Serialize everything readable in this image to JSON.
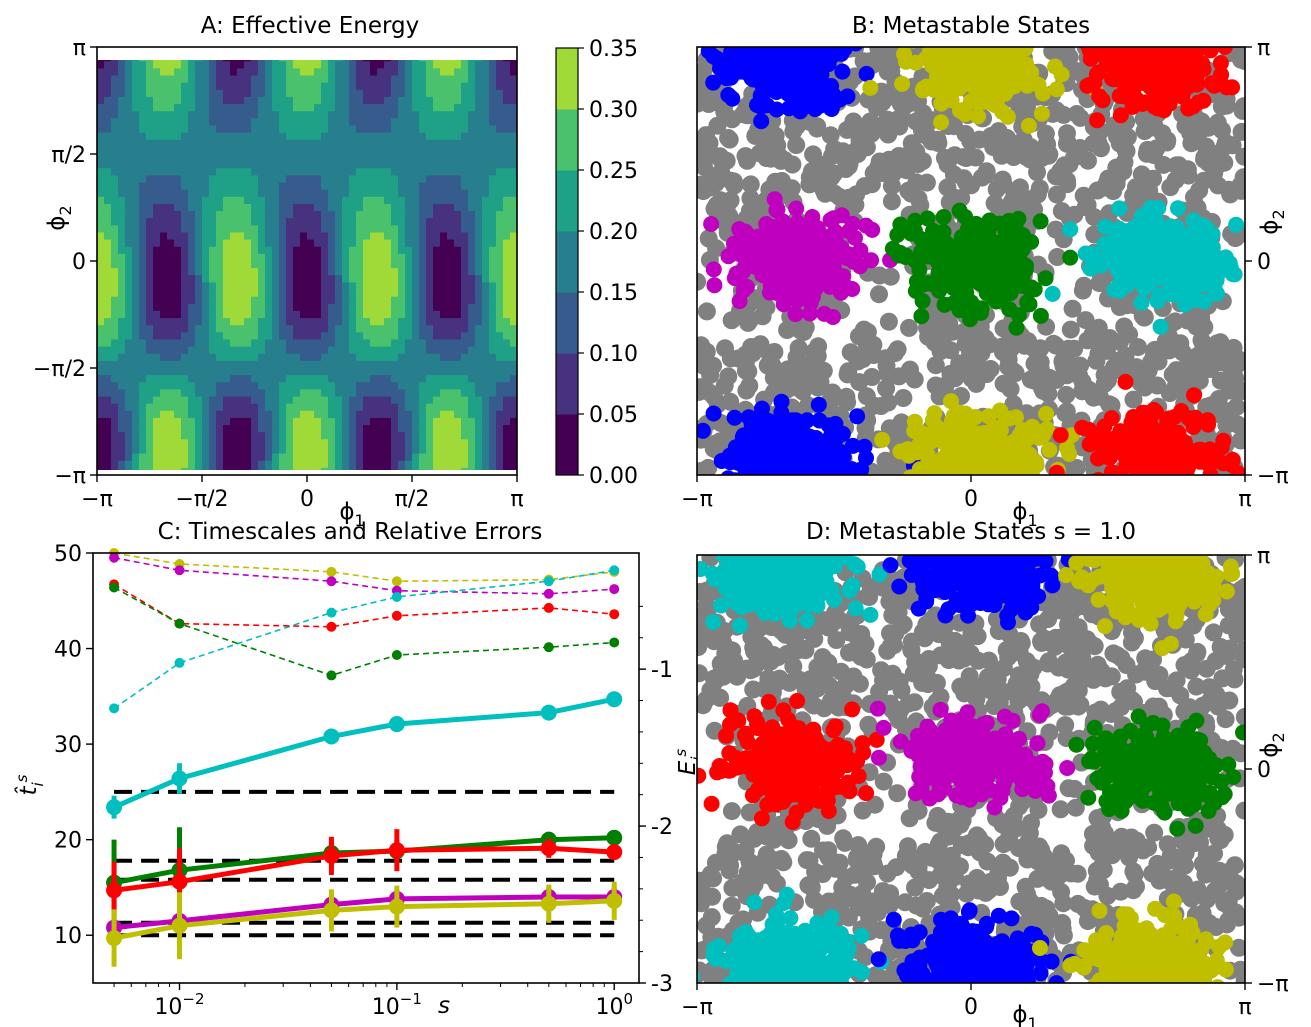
{
  "panels": {
    "a": {
      "title": "A: Effective Energy",
      "xlabel_base": "ϕ",
      "xlabel_sub": "1",
      "ylabel_base": "ϕ",
      "ylabel_sub": "2",
      "ticks": [
        "−π",
        "−π/2",
        "0",
        "π/2",
        "π"
      ],
      "colorbar_ticks": [
        "0.00",
        "0.05",
        "0.10",
        "0.15",
        "0.20",
        "0.25",
        "0.30",
        "0.35"
      ]
    },
    "b": {
      "title": "B: Metastable States",
      "xlabel_base": "ϕ",
      "xlabel_sub": "1",
      "ylabel_base": "ϕ",
      "ylabel_sub": "2",
      "xticks": [
        "−π",
        "0",
        "π"
      ],
      "yticks": [
        "π",
        "0",
        "−π"
      ]
    },
    "c": {
      "title": "C: Timescales and Relative Errors",
      "xlabel": "s",
      "ylabel_left_base": "t̂",
      "ylabel_left_sub": "i",
      "ylabel_left_sup": "s",
      "ylabel_right_base": "E",
      "ylabel_right_sub": "i",
      "ylabel_right_sup": "s",
      "yticks_left": [
        "10",
        "20",
        "30",
        "40",
        "50"
      ],
      "yticks_right": [
        "-1",
        "-2",
        "-3"
      ],
      "xticks": [
        {
          "base": "10",
          "exp": "−2"
        },
        {
          "base": "10",
          "exp": "−1"
        },
        {
          "base": "10",
          "exp": "0"
        }
      ]
    },
    "d": {
      "title": "D: Metastable States s = 1.0",
      "xlabel_base": "ϕ",
      "xlabel_sub": "1",
      "ylabel_base": "ϕ",
      "ylabel_sub": "2",
      "xticks": [
        "−π",
        "0",
        "π"
      ],
      "yticks": [
        "π",
        "0",
        "−π"
      ]
    }
  },
  "chart_data": [
    {
      "type": "heatmap",
      "panel": "A",
      "title": "A: Effective Energy",
      "xlim": [
        -3.1416,
        3.1416
      ],
      "ylim": [
        -3.1416,
        3.1416
      ],
      "colorbar_range": [
        0.0,
        0.35
      ],
      "levels": [
        0.0,
        0.05,
        0.1,
        0.15,
        0.2,
        0.25,
        0.3,
        0.35
      ],
      "colormap": [
        "#440154",
        "#46327e",
        "#365c8d",
        "#277f8e",
        "#1fa187",
        "#4ac16d",
        "#a0da39",
        "#fde725"
      ],
      "minima_at": [
        [
          -2.09,
          0
        ],
        [
          0,
          0
        ],
        [
          2.09,
          0
        ],
        [
          -2.09,
          3.14
        ],
        [
          0,
          3.14
        ],
        [
          2.09,
          3.14
        ],
        [
          -2.09,
          -3.14
        ],
        [
          0,
          -3.14
        ],
        [
          2.09,
          -3.14
        ]
      ],
      "maxima_at": [
        [
          -1.05,
          1.57
        ],
        [
          1.05,
          1.57
        ],
        [
          3.14,
          1.57
        ],
        [
          -3.14,
          1.57
        ],
        [
          -1.05,
          -1.57
        ],
        [
          1.05,
          -1.57
        ],
        [
          3.14,
          -1.57
        ],
        [
          -3.14,
          -1.57
        ]
      ]
    },
    {
      "type": "scatter",
      "panel": "B",
      "title": "B: Metastable States",
      "xlim": [
        -3.1416,
        3.1416
      ],
      "ylim": [
        -3.1416,
        3.1416
      ],
      "background_color": "#808080",
      "clusters": [
        {
          "color": "#0000ff",
          "centers": [
            [
              -2.1,
              2.85
            ],
            [
              -2.1,
              -2.85
            ]
          ]
        },
        {
          "color": "#bfbf00",
          "centers": [
            [
              0.05,
              2.85
            ],
            [
              0.05,
              -2.85
            ]
          ]
        },
        {
          "color": "#ff0000",
          "centers": [
            [
              2.1,
              2.9
            ],
            [
              2.1,
              -2.85
            ]
          ]
        },
        {
          "color": "#bf00bf",
          "centers": [
            [
              -2.0,
              0.05
            ]
          ]
        },
        {
          "color": "#008000",
          "centers": [
            [
              0.05,
              0.0
            ]
          ]
        },
        {
          "color": "#00bfbf",
          "centers": [
            [
              2.2,
              0.05
            ]
          ]
        }
      ]
    },
    {
      "type": "line",
      "panel": "C",
      "title": "C: Timescales and Relative Errors",
      "xscale": "log",
      "xlim": [
        0.004,
        1.3
      ],
      "ylim": [
        5,
        50
      ],
      "y2lim": [
        -3,
        -0.26
      ],
      "x": [
        0.005,
        0.01,
        0.05,
        0.1,
        0.5,
        1.0
      ],
      "reference_levels": [
        25.0,
        17.8,
        15.8,
        11.3,
        10.0
      ],
      "series": [
        {
          "color": "#00bfbf",
          "axis": "left",
          "values": [
            23.4,
            26.4,
            30.8,
            32.1,
            33.3,
            34.7
          ],
          "errors": [
            1.2,
            1.6,
            0.6,
            0.6,
            0.6,
            0.6
          ]
        },
        {
          "color": "#008000",
          "axis": "left",
          "values": [
            15.5,
            16.8,
            18.6,
            18.8,
            20.0,
            20.2
          ],
          "errors": [
            4.5,
            4.5,
            1.2,
            1.2,
            0.8,
            0.8
          ]
        },
        {
          "color": "#ff0000",
          "axis": "left",
          "values": [
            14.7,
            15.6,
            18.3,
            18.9,
            19.1,
            18.7
          ],
          "errors": [
            3.0,
            3.5,
            2.0,
            2.2,
            1.0,
            0.6
          ]
        },
        {
          "color": "#bf00bf",
          "axis": "left",
          "values": [
            10.8,
            11.5,
            13.2,
            13.8,
            14.0,
            14.0
          ],
          "errors": [
            1.0,
            1.2,
            1.0,
            1.0,
            1.0,
            1.0
          ]
        },
        {
          "color": "#bfbf00",
          "axis": "left",
          "values": [
            9.7,
            11.0,
            12.6,
            13.0,
            13.3,
            13.6
          ],
          "errors": [
            3.0,
            3.5,
            2.2,
            2.2,
            2.0,
            2.0
          ]
        },
        {
          "color": "#bfbf00",
          "axis": "right",
          "values": [
            -0.26,
            -0.33,
            -0.38,
            -0.44,
            -0.43,
            -0.38
          ]
        },
        {
          "color": "#bf00bf",
          "axis": "right",
          "values": [
            -0.29,
            -0.37,
            -0.44,
            -0.5,
            -0.52,
            -0.49
          ]
        },
        {
          "color": "#00bfbf",
          "axis": "right",
          "values": [
            -1.25,
            -0.96,
            -0.64,
            -0.54,
            -0.44,
            -0.37
          ]
        },
        {
          "color": "#ff0000",
          "axis": "right",
          "values": [
            -0.46,
            -0.71,
            -0.73,
            -0.66,
            -0.61,
            -0.65
          ]
        },
        {
          "color": "#008000",
          "axis": "right",
          "values": [
            -0.48,
            -0.71,
            -1.04,
            -0.91,
            -0.86,
            -0.83
          ]
        }
      ]
    },
    {
      "type": "scatter",
      "panel": "D",
      "title": "D: Metastable States s = 1.0",
      "xlim": [
        -3.1416,
        3.1416
      ],
      "ylim": [
        -3.1416,
        3.1416
      ],
      "background_color": "#808080",
      "clusters": [
        {
          "color": "#00bfbf",
          "centers": [
            [
              -2.1,
              2.85
            ],
            [
              -2.1,
              -2.85
            ]
          ]
        },
        {
          "color": "#0000ff",
          "centers": [
            [
              0.05,
              2.95
            ],
            [
              0.05,
              -2.85
            ]
          ]
        },
        {
          "color": "#bfbf00",
          "centers": [
            [
              2.1,
              2.85
            ],
            [
              2.1,
              -2.85
            ]
          ]
        },
        {
          "color": "#ff0000",
          "centers": [
            [
              -2.0,
              0.05
            ]
          ]
        },
        {
          "color": "#bf00bf",
          "centers": [
            [
              0.05,
              0.15
            ]
          ]
        },
        {
          "color": "#008000",
          "centers": [
            [
              2.15,
              0.05
            ]
          ]
        }
      ]
    }
  ]
}
